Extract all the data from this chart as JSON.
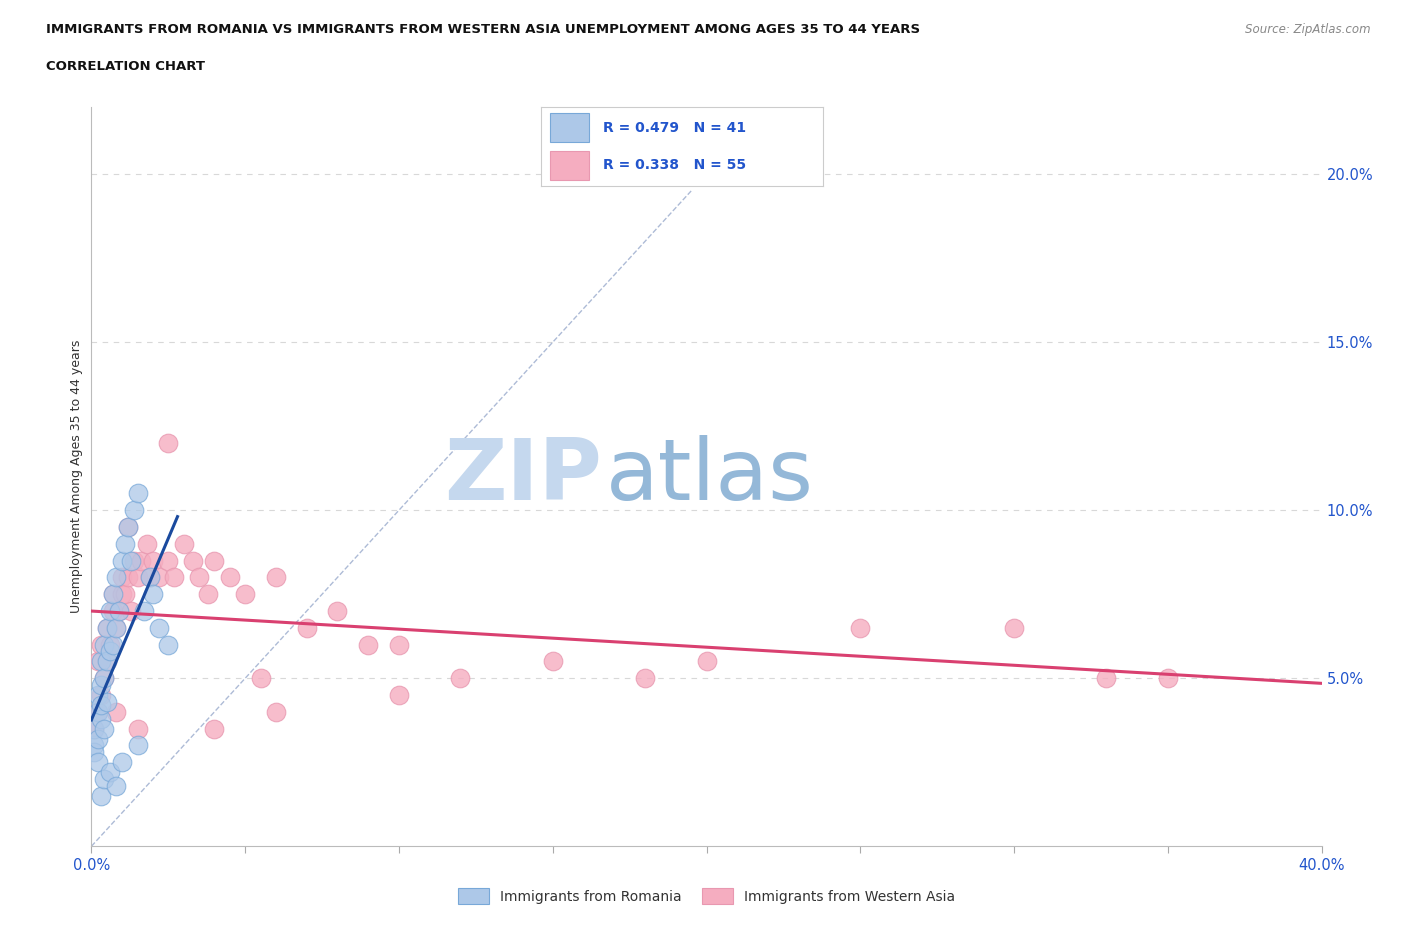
{
  "title_line1": "IMMIGRANTS FROM ROMANIA VS IMMIGRANTS FROM WESTERN ASIA UNEMPLOYMENT AMONG AGES 35 TO 44 YEARS",
  "title_line2": "CORRELATION CHART",
  "source_text": "Source: ZipAtlas.com",
  "ylabel": "Unemployment Among Ages 35 to 44 years",
  "xlim": [
    0.0,
    0.4
  ],
  "ylim": [
    0.0,
    0.22
  ],
  "xticks": [
    0.0,
    0.05,
    0.1,
    0.15,
    0.2,
    0.25,
    0.3,
    0.35,
    0.4
  ],
  "ytick_labels_right": [
    "5.0%",
    "10.0%",
    "15.0%",
    "20.0%"
  ],
  "ytick_vals_right": [
    0.05,
    0.1,
    0.15,
    0.2
  ],
  "romania_R": 0.479,
  "romania_N": 41,
  "western_asia_R": 0.338,
  "western_asia_N": 55,
  "romania_color": "#adc8e8",
  "western_asia_color": "#f5adc0",
  "romania_trend_color": "#1a4a9e",
  "western_asia_trend_color": "#d94070",
  "legend_R_color": "#2255cc",
  "watermark_color_zip": "#b8cce4",
  "watermark_color_atlas": "#7fa8d0",
  "grid_color": "#d8d8d8",
  "romania_scatter_x": [
    0.001,
    0.001,
    0.001,
    0.002,
    0.002,
    0.002,
    0.002,
    0.003,
    0.003,
    0.003,
    0.003,
    0.004,
    0.004,
    0.004,
    0.005,
    0.005,
    0.005,
    0.006,
    0.006,
    0.007,
    0.007,
    0.008,
    0.008,
    0.009,
    0.01,
    0.011,
    0.012,
    0.013,
    0.014,
    0.015,
    0.017,
    0.019,
    0.02,
    0.022,
    0.025,
    0.003,
    0.004,
    0.006,
    0.008,
    0.01,
    0.015
  ],
  "romania_scatter_y": [
    0.03,
    0.035,
    0.028,
    0.04,
    0.025,
    0.045,
    0.032,
    0.038,
    0.042,
    0.055,
    0.048,
    0.05,
    0.06,
    0.035,
    0.055,
    0.065,
    0.043,
    0.058,
    0.07,
    0.06,
    0.075,
    0.065,
    0.08,
    0.07,
    0.085,
    0.09,
    0.095,
    0.085,
    0.1,
    0.105,
    0.07,
    0.08,
    0.075,
    0.065,
    0.06,
    0.015,
    0.02,
    0.022,
    0.018,
    0.025,
    0.03
  ],
  "western_asia_scatter_x": [
    0.001,
    0.002,
    0.002,
    0.003,
    0.003,
    0.004,
    0.005,
    0.005,
    0.006,
    0.007,
    0.007,
    0.008,
    0.009,
    0.01,
    0.01,
    0.011,
    0.012,
    0.013,
    0.014,
    0.015,
    0.016,
    0.018,
    0.019,
    0.02,
    0.022,
    0.025,
    0.027,
    0.03,
    0.033,
    0.035,
    0.038,
    0.04,
    0.045,
    0.05,
    0.055,
    0.06,
    0.07,
    0.08,
    0.09,
    0.1,
    0.12,
    0.15,
    0.18,
    0.2,
    0.25,
    0.3,
    0.33,
    0.35,
    0.025,
    0.012,
    0.008,
    0.015,
    0.04,
    0.06,
    0.1
  ],
  "western_asia_scatter_y": [
    0.035,
    0.04,
    0.055,
    0.045,
    0.06,
    0.05,
    0.055,
    0.065,
    0.06,
    0.07,
    0.075,
    0.065,
    0.07,
    0.075,
    0.08,
    0.075,
    0.08,
    0.07,
    0.085,
    0.08,
    0.085,
    0.09,
    0.08,
    0.085,
    0.08,
    0.085,
    0.08,
    0.09,
    0.085,
    0.08,
    0.075,
    0.085,
    0.08,
    0.075,
    0.05,
    0.08,
    0.065,
    0.07,
    0.06,
    0.06,
    0.05,
    0.055,
    0.05,
    0.055,
    0.065,
    0.065,
    0.05,
    0.05,
    0.12,
    0.095,
    0.04,
    0.035,
    0.035,
    0.04,
    0.045
  ],
  "ref_line_x": [
    0.0,
    0.195
  ],
  "ref_line_y": [
    0.0,
    0.195
  ]
}
